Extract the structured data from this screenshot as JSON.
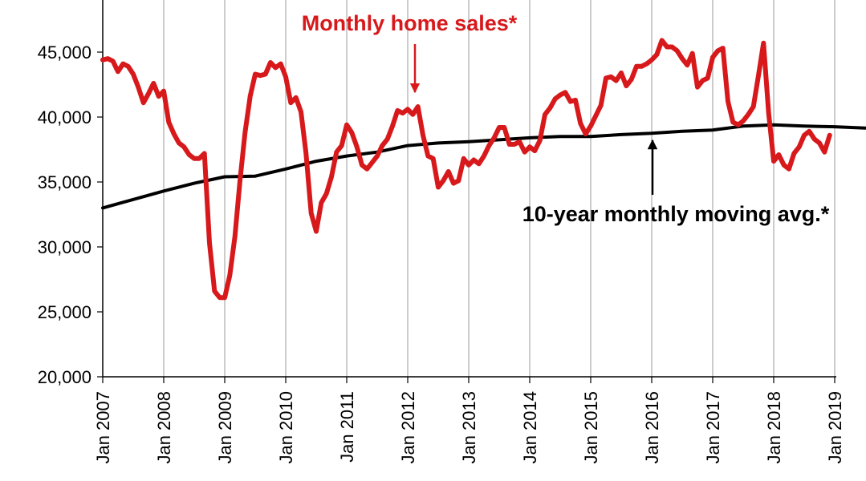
{
  "chart_data": {
    "type": "line",
    "title": "",
    "xlabel": "",
    "ylabel": "",
    "ylim": [
      20000,
      45000
    ],
    "yticks": [
      "20,000",
      "25,000",
      "30,000",
      "35,000",
      "40,000",
      "45,000"
    ],
    "ytick_values": [
      20000,
      25000,
      30000,
      35000,
      40000,
      45000
    ],
    "xticks": [
      "Jan 2007",
      "Jan 2008",
      "Jan 2009",
      "Jan 2010",
      "Jan 2011",
      "Jan 2012",
      "Jan 2013",
      "Jan 2014",
      "Jan 2015",
      "Jan 2016",
      "Jan 2017",
      "Jan 2018",
      "Jan 2019"
    ],
    "grid": "vertical",
    "x_start": "Jan 2007",
    "series": [
      {
        "name": "Monthly home sales*",
        "color": "#d7191c",
        "values": [
          44400,
          44500,
          44300,
          43500,
          44100,
          43900,
          43300,
          42300,
          41100,
          41800,
          42600,
          41600,
          42000,
          39600,
          38700,
          38000,
          37700,
          37100,
          36800,
          36800,
          37200,
          30300,
          26600,
          26100,
          26100,
          27800,
          30800,
          35100,
          38800,
          41600,
          43300,
          43200,
          43300,
          44200,
          43800,
          44100,
          43100,
          41100,
          41500,
          40400,
          37200,
          32600,
          31200,
          33400,
          34100,
          35400,
          37300,
          37800,
          39400,
          38800,
          37700,
          36300,
          36000,
          36500,
          37000,
          37800,
          38300,
          39300,
          40500,
          40300,
          40600,
          40200,
          40800,
          38600,
          37000,
          36800,
          34600,
          35100,
          35800,
          34900,
          35100,
          36800,
          36300,
          36700,
          36400,
          37000,
          37800,
          38400,
          39200,
          39200,
          37900,
          37900,
          38100,
          37300,
          37700,
          37400,
          38200,
          40200,
          40700,
          41400,
          41700,
          41900,
          41200,
          41300,
          39500,
          38700,
          39300,
          40100,
          40900,
          43000,
          43100,
          42800,
          43400,
          42400,
          42900,
          43900,
          43900,
          44100,
          44400,
          44800,
          45900,
          45400,
          45400,
          45100,
          44500,
          44000,
          44900,
          42300,
          42800,
          43000,
          44600,
          45100,
          45300,
          41200,
          39600,
          39400,
          39700,
          40200,
          40800,
          43200,
          45700,
          40300,
          36600,
          37100,
          36300,
          36000,
          37200,
          37700,
          38600,
          38900,
          38300,
          38000,
          37300,
          38600
        ]
      },
      {
        "name": "10-year monthly moving avg.*",
        "color": "#000000",
        "points": [
          [
            0,
            33000
          ],
          [
            12,
            34300
          ],
          [
            18,
            34900
          ],
          [
            24,
            35400
          ],
          [
            30,
            35450
          ],
          [
            36,
            36000
          ],
          [
            42,
            36600
          ],
          [
            48,
            37000
          ],
          [
            54,
            37300
          ],
          [
            60,
            37800
          ],
          [
            66,
            38000
          ],
          [
            72,
            38100
          ],
          [
            78,
            38250
          ],
          [
            84,
            38400
          ],
          [
            90,
            38500
          ],
          [
            96,
            38500
          ],
          [
            102,
            38650
          ],
          [
            108,
            38750
          ],
          [
            114,
            38900
          ],
          [
            120,
            39000
          ],
          [
            126,
            39300
          ],
          [
            132,
            39400
          ],
          [
            138,
            39300
          ],
          [
            144,
            39250
          ],
          [
            150,
            39150
          ],
          [
            156,
            39600
          ]
        ]
      }
    ],
    "annotations": [
      {
        "text": "Monthly home sales*",
        "color": "#d7191c",
        "points_to": [
          "Apr 2012",
          40800
        ]
      },
      {
        "text": "10-year monthly moving avg.*",
        "color": "#000000",
        "points_to": [
          "Apr 2016",
          39100
        ]
      }
    ]
  }
}
